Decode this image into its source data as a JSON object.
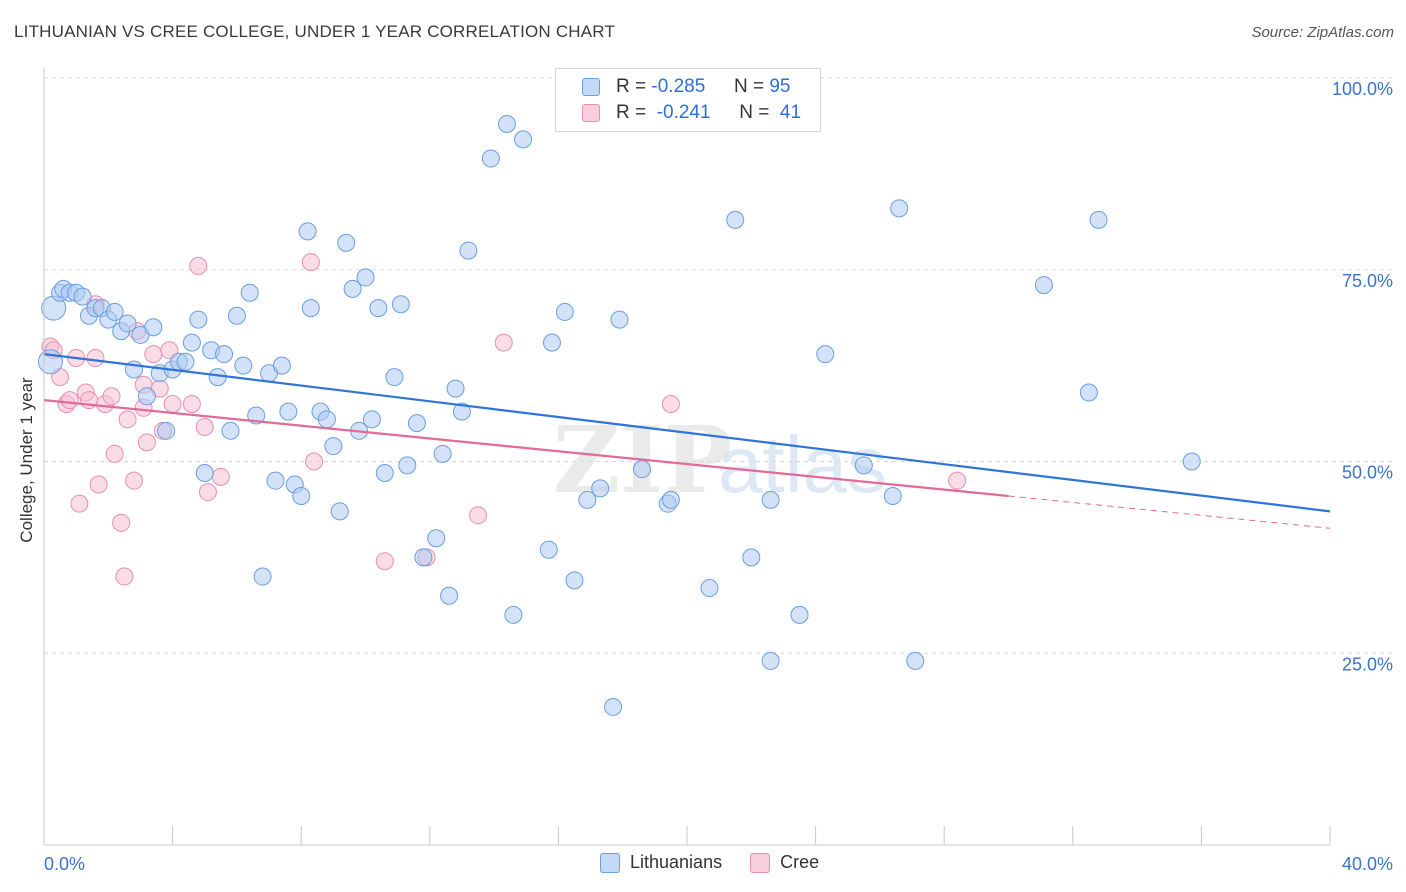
{
  "header": {
    "title": "LITHUANIAN VS CREE COLLEGE, UNDER 1 YEAR CORRELATION CHART",
    "source": "Source: ZipAtlas.com"
  },
  "legend_top": {
    "rows": [
      {
        "r_label": "R =",
        "r_value": "-0.285",
        "n_label": "N =",
        "n_value": "95"
      },
      {
        "r_label": "R =",
        "r_value": "-0.241",
        "n_label": "N =",
        "n_value": "41"
      }
    ]
  },
  "legend_bottom": {
    "items": [
      "Lithuanians",
      "Cree"
    ]
  },
  "colors": {
    "blue_fill": "#aecbf3",
    "blue_stroke": "#6a9fe0",
    "blue_line": "#2f74d6",
    "pink_fill": "#f6c0d2",
    "pink_stroke": "#e88fb0",
    "pink_line": "#e06b97",
    "axis_text": "#3d73c9",
    "grid": "#d9d9d9"
  },
  "chart_data": {
    "type": "scatter",
    "title": "LITHUANIAN VS CREE COLLEGE, UNDER 1 YEAR CORRELATION CHART",
    "xlabel": "",
    "ylabel": "College, Under 1 year",
    "xlim": [
      0,
      40
    ],
    "ylim": [
      0,
      105
    ],
    "x_tick_labels": [
      "0.0%",
      "40.0%"
    ],
    "y_ticks": [
      25,
      50,
      75,
      100
    ],
    "y_tick_labels": [
      "25.0%",
      "50.0%",
      "75.0%",
      "100.0%"
    ],
    "grid": true,
    "legend_position": "top-center",
    "watermark": "ZIPatlas",
    "series": [
      {
        "name": "Lithuanians",
        "r": -0.285,
        "n": 95,
        "trend": {
          "x": [
            0,
            40
          ],
          "y": [
            64.0,
            43.5
          ]
        },
        "points": [
          [
            0.2,
            63.0
          ],
          [
            0.3,
            70.0
          ],
          [
            0.5,
            72.0
          ],
          [
            0.6,
            72.5
          ],
          [
            0.8,
            72.0
          ],
          [
            1.0,
            72.0
          ],
          [
            1.2,
            71.5
          ],
          [
            1.4,
            69.0
          ],
          [
            1.6,
            70.0
          ],
          [
            1.8,
            70.0
          ],
          [
            2.0,
            68.5
          ],
          [
            2.2,
            69.5
          ],
          [
            2.4,
            67.0
          ],
          [
            2.6,
            68.0
          ],
          [
            2.8,
            62.0
          ],
          [
            3.0,
            66.5
          ],
          [
            3.2,
            58.5
          ],
          [
            3.4,
            67.5
          ],
          [
            3.6,
            61.5
          ],
          [
            3.8,
            54.0
          ],
          [
            4.0,
            62.0
          ],
          [
            4.2,
            63.0
          ],
          [
            4.4,
            63.0
          ],
          [
            4.6,
            65.5
          ],
          [
            4.8,
            68.5
          ],
          [
            5.0,
            48.5
          ],
          [
            5.2,
            64.5
          ],
          [
            5.4,
            61.0
          ],
          [
            5.6,
            64.0
          ],
          [
            5.8,
            54.0
          ],
          [
            6.0,
            69.0
          ],
          [
            6.2,
            62.5
          ],
          [
            6.4,
            72.0
          ],
          [
            6.6,
            56.0
          ],
          [
            6.8,
            35.0
          ],
          [
            7.0,
            61.5
          ],
          [
            7.2,
            47.5
          ],
          [
            7.4,
            62.5
          ],
          [
            7.6,
            56.5
          ],
          [
            7.8,
            47.0
          ],
          [
            8.0,
            45.5
          ],
          [
            8.2,
            80.0
          ],
          [
            8.3,
            70.0
          ],
          [
            8.6,
            56.5
          ],
          [
            8.8,
            55.5
          ],
          [
            9.0,
            52.0
          ],
          [
            9.2,
            43.5
          ],
          [
            9.4,
            78.5
          ],
          [
            9.6,
            72.5
          ],
          [
            9.8,
            54.0
          ],
          [
            10.0,
            74.0
          ],
          [
            10.2,
            55.5
          ],
          [
            10.4,
            70.0
          ],
          [
            10.6,
            48.5
          ],
          [
            10.9,
            61.0
          ],
          [
            11.1,
            70.5
          ],
          [
            11.3,
            49.5
          ],
          [
            11.6,
            55.0
          ],
          [
            11.8,
            37.5
          ],
          [
            12.2,
            40.0
          ],
          [
            12.4,
            51.0
          ],
          [
            12.6,
            32.5
          ],
          [
            12.8,
            59.5
          ],
          [
            13.0,
            56.5
          ],
          [
            13.2,
            77.5
          ],
          [
            13.9,
            89.5
          ],
          [
            14.4,
            94.0
          ],
          [
            14.6,
            30.0
          ],
          [
            14.9,
            92.0
          ],
          [
            15.7,
            38.5
          ],
          [
            15.8,
            65.5
          ],
          [
            16.2,
            69.5
          ],
          [
            16.5,
            34.5
          ],
          [
            16.9,
            45.0
          ],
          [
            17.3,
            46.5
          ],
          [
            17.7,
            18.0
          ],
          [
            17.9,
            68.5
          ],
          [
            18.6,
            49.0
          ],
          [
            19.4,
            44.5
          ],
          [
            19.5,
            45.0
          ],
          [
            20.7,
            33.5
          ],
          [
            21.5,
            81.5
          ],
          [
            22.0,
            37.5
          ],
          [
            22.6,
            24.0
          ],
          [
            22.6,
            45.0
          ],
          [
            23.5,
            30.0
          ],
          [
            24.3,
            64.0
          ],
          [
            25.5,
            49.5
          ],
          [
            26.4,
            45.5
          ],
          [
            26.6,
            83.0
          ],
          [
            27.1,
            24.0
          ],
          [
            31.1,
            73.0
          ],
          [
            32.5,
            59.0
          ],
          [
            32.8,
            81.5
          ],
          [
            35.7,
            50.0
          ]
        ]
      },
      {
        "name": "Cree",
        "r": -0.241,
        "n": 41,
        "trend": {
          "x": [
            0,
            30.0
          ],
          "y": [
            58.0,
            45.5
          ]
        },
        "trend_dashed": {
          "x": [
            30.0,
            40
          ],
          "y": [
            45.5,
            41.3
          ]
        },
        "points": [
          [
            0.2,
            65.0
          ],
          [
            0.3,
            64.5
          ],
          [
            0.5,
            61.0
          ],
          [
            0.7,
            57.5
          ],
          [
            0.8,
            58.0
          ],
          [
            1.0,
            63.5
          ],
          [
            1.1,
            44.5
          ],
          [
            1.3,
            59.0
          ],
          [
            1.4,
            58.0
          ],
          [
            1.6,
            63.5
          ],
          [
            1.6,
            70.5
          ],
          [
            1.7,
            47.0
          ],
          [
            1.9,
            57.5
          ],
          [
            2.1,
            58.5
          ],
          [
            2.2,
            51.0
          ],
          [
            2.4,
            42.0
          ],
          [
            2.5,
            35.0
          ],
          [
            2.6,
            55.5
          ],
          [
            2.8,
            47.5
          ],
          [
            2.9,
            67.0
          ],
          [
            3.1,
            60.0
          ],
          [
            3.2,
            52.5
          ],
          [
            3.4,
            64.0
          ],
          [
            3.6,
            59.5
          ],
          [
            3.7,
            54.0
          ],
          [
            3.9,
            64.5
          ],
          [
            4.0,
            57.5
          ],
          [
            4.6,
            57.5
          ],
          [
            4.8,
            75.5
          ],
          [
            5.0,
            54.5
          ],
          [
            5.1,
            46.0
          ],
          [
            5.5,
            48.0
          ],
          [
            8.3,
            76.0
          ],
          [
            8.4,
            50.0
          ],
          [
            10.6,
            37.0
          ],
          [
            11.9,
            37.5
          ],
          [
            13.5,
            43.0
          ],
          [
            14.3,
            65.5
          ],
          [
            19.5,
            57.5
          ],
          [
            28.4,
            47.5
          ],
          [
            3.1,
            57.0
          ]
        ]
      }
    ]
  }
}
